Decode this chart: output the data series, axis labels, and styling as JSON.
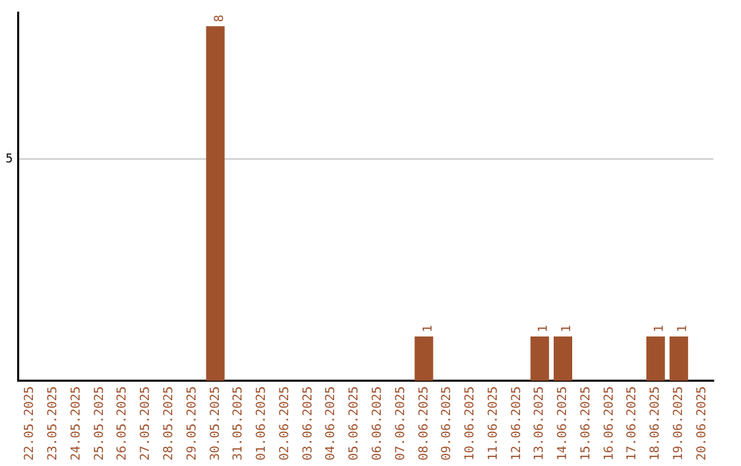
{
  "chart_data": {
    "type": "bar",
    "categories": [
      "22.05.2025",
      "23.05.2025",
      "24.05.2025",
      "25.05.2025",
      "26.05.2025",
      "27.05.2025",
      "28.05.2025",
      "29.05.2025",
      "30.05.2025",
      "31.05.2025",
      "01.06.2025",
      "02.06.2025",
      "03.06.2025",
      "04.06.2025",
      "05.06.2025",
      "06.06.2025",
      "07.06.2025",
      "08.06.2025",
      "09.06.2025",
      "10.06.2025",
      "11.06.2025",
      "12.06.2025",
      "13.06.2025",
      "14.06.2025",
      "15.06.2025",
      "16.06.2025",
      "17.06.2025",
      "18.06.2025",
      "19.06.2025",
      "20.06.2025"
    ],
    "values": [
      0,
      0,
      0,
      0,
      0,
      0,
      0,
      0,
      8,
      0,
      0,
      0,
      0,
      0,
      0,
      0,
      0,
      1,
      0,
      0,
      0,
      0,
      1,
      1,
      0,
      0,
      0,
      1,
      1,
      0
    ],
    "color": "#a0522d",
    "value_labels": [
      null,
      null,
      null,
      null,
      null,
      null,
      null,
      null,
      "8",
      null,
      null,
      null,
      null,
      null,
      null,
      null,
      null,
      "1",
      null,
      null,
      null,
      null,
      "1",
      "1",
      null,
      null,
      null,
      "1",
      "1",
      null
    ],
    "ylim": [
      0,
      8.3
    ],
    "yticks": [
      5
    ],
    "grid": "y"
  }
}
